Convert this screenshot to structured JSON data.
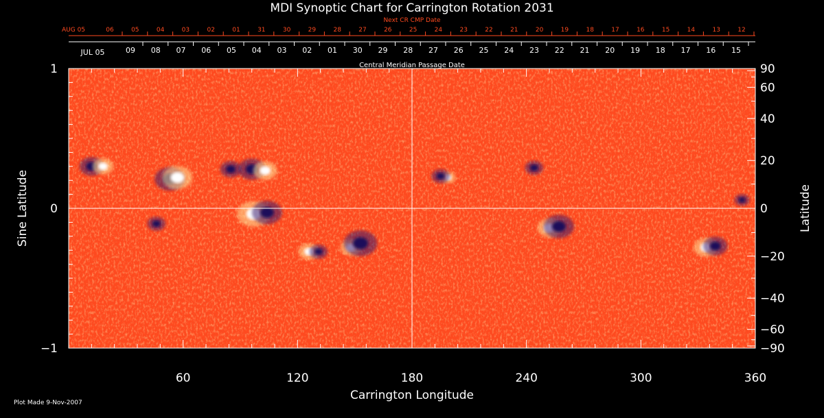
{
  "chart_data": {
    "type": "heatmap",
    "title": "MDI Synoptic Chart for Carrington Rotation 2031",
    "top_axis_red_label": "Next CR CMP Date",
    "top_red_ticks": [
      "AUG 05",
      "06",
      "05",
      "04",
      "03",
      "02",
      "01",
      "31",
      "30",
      "29",
      "28",
      "27",
      "26",
      "25",
      "24",
      "23",
      "22",
      "21",
      "20",
      "19",
      "18",
      "17",
      "16",
      "15",
      "14",
      "13",
      "12"
    ],
    "top_white_ticks": [
      "JUL 05",
      "09",
      "08",
      "07",
      "06",
      "05",
      "04",
      "03",
      "02",
      "01",
      "30",
      "29",
      "28",
      "27",
      "26",
      "25",
      "24",
      "23",
      "22",
      "21",
      "20",
      "19",
      "18",
      "17",
      "16",
      "15"
    ],
    "top_axis_white_label": "Central Meridian Passage Date",
    "xlabel": "Carrington Longitude",
    "ylabel_left": "Sine Latitude",
    "ylabel_right": "Latitude",
    "xlim": [
      0,
      360
    ],
    "ylim": [
      -1,
      1
    ],
    "x_ticks": [
      "60",
      "120",
      "180",
      "240",
      "300",
      "360"
    ],
    "y_left_ticks": [
      "1",
      "0",
      "−1"
    ],
    "y_right_ticks": [
      "90",
      "60",
      "40",
      "20",
      "0",
      "−20",
      "−40",
      "−60",
      "−90"
    ],
    "plot_made": "Plot Made  9-Nov-2007",
    "colors": {
      "background": "#ff4a1f",
      "positive": "#ffffff",
      "negative": "#1a0f5a",
      "accent": "#ff4a1f"
    },
    "magnetic_regions": [
      {
        "lon": 12,
        "sinlat": 0.3,
        "polarity": "negative",
        "size": 8
      },
      {
        "lon": 18,
        "sinlat": 0.3,
        "polarity": "positive",
        "size": 7
      },
      {
        "lon": 53,
        "sinlat": 0.21,
        "polarity": "negative",
        "size": 10
      },
      {
        "lon": 57,
        "sinlat": 0.22,
        "polarity": "positive",
        "size": 10
      },
      {
        "lon": 46,
        "sinlat": -0.11,
        "polarity": "negative",
        "size": 6
      },
      {
        "lon": 85,
        "sinlat": 0.28,
        "polarity": "negative",
        "size": 7
      },
      {
        "lon": 96,
        "sinlat": 0.28,
        "polarity": "negative",
        "size": 9
      },
      {
        "lon": 103,
        "sinlat": 0.27,
        "polarity": "positive",
        "size": 8
      },
      {
        "lon": 97,
        "sinlat": -0.04,
        "polarity": "positive",
        "size": 11
      },
      {
        "lon": 104,
        "sinlat": -0.03,
        "polarity": "negative",
        "size": 10
      },
      {
        "lon": 126,
        "sinlat": -0.31,
        "polarity": "positive",
        "size": 7
      },
      {
        "lon": 131,
        "sinlat": -0.31,
        "polarity": "negative",
        "size": 6
      },
      {
        "lon": 148,
        "sinlat": -0.28,
        "polarity": "positive",
        "size": 7
      },
      {
        "lon": 153,
        "sinlat": -0.25,
        "polarity": "negative",
        "size": 11
      },
      {
        "lon": 199,
        "sinlat": 0.22,
        "polarity": "positive",
        "size": 5
      },
      {
        "lon": 195,
        "sinlat": 0.23,
        "polarity": "negative",
        "size": 6
      },
      {
        "lon": 244,
        "sinlat": 0.29,
        "polarity": "negative",
        "size": 6
      },
      {
        "lon": 252,
        "sinlat": -0.14,
        "polarity": "positive",
        "size": 8
      },
      {
        "lon": 257,
        "sinlat": -0.13,
        "polarity": "negative",
        "size": 10
      },
      {
        "lon": 334,
        "sinlat": -0.28,
        "polarity": "positive",
        "size": 8
      },
      {
        "lon": 339,
        "sinlat": -0.27,
        "polarity": "negative",
        "size": 8
      },
      {
        "lon": 353,
        "sinlat": 0.06,
        "polarity": "negative",
        "size": 5
      }
    ]
  }
}
